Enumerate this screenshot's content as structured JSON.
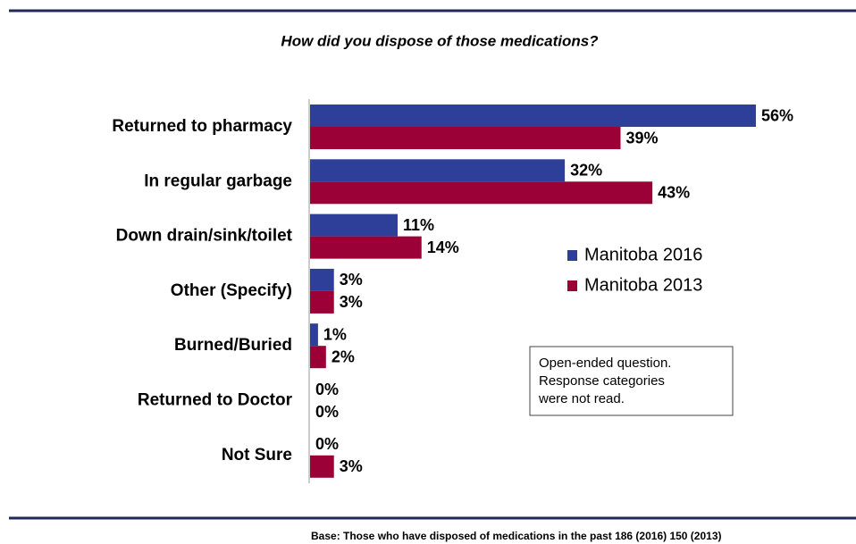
{
  "chart_data": {
    "type": "hbar",
    "title": "How did you dispose of those medications?",
    "categories": [
      "Returned to pharmacy",
      "In regular garbage",
      "Down drain/sink/toilet",
      "Other (Specify)",
      "Burned/Buried",
      "Returned to Doctor",
      "Not Sure"
    ],
    "series": [
      {
        "name": "Manitoba 2016",
        "color": "#2e3f99",
        "values": [
          56,
          32,
          11,
          3,
          1,
          0,
          0
        ],
        "value_labels": [
          "56%",
          "32%",
          "11%",
          "3%",
          "1%",
          "0%",
          "0%"
        ]
      },
      {
        "name": "Manitoba 2013",
        "color": "#9b0036",
        "values": [
          39,
          43,
          14,
          3,
          2,
          0,
          3
        ],
        "value_labels": [
          "39%",
          "43%",
          "14%",
          "3%",
          "2%",
          "0%",
          "3%"
        ]
      }
    ],
    "note": [
      "Open-ended  question.",
      "Response categories",
      "were not read."
    ],
    "footnote": "Base: Those who have disposed of medications in the past 186 (2016) 150 (2013)"
  }
}
